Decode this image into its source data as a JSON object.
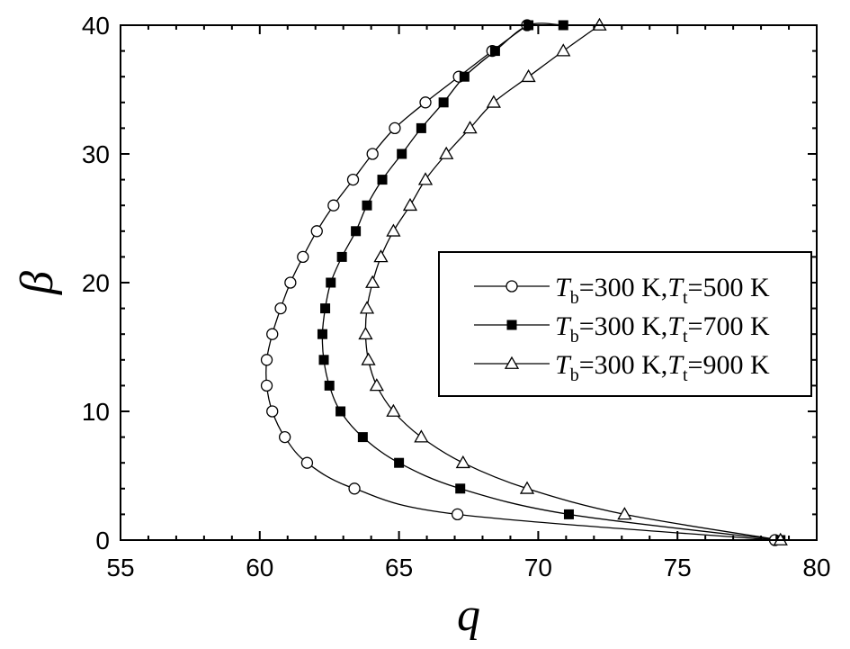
{
  "chart_data": {
    "type": "line",
    "xlabel": "q",
    "ylabel": "β",
    "xlim": [
      55,
      80
    ],
    "ylim": [
      0,
      40
    ],
    "x_ticks": [
      "55",
      "60",
      "65",
      "70",
      "75",
      "80"
    ],
    "y_ticks": [
      "0",
      "10",
      "20",
      "30",
      "40"
    ],
    "grid": false,
    "legend_position": "right",
    "series": [
      {
        "name": "Tb=300 K,Tt=500 K",
        "legend": {
          "t1": "T",
          "s1": "b",
          "m1": "=300 K,",
          "t2": "T",
          "s2": "t",
          "m2": "=500 K"
        },
        "marker": "open-circle",
        "points": [
          [
            78.5,
            0
          ],
          [
            67.1,
            2
          ],
          [
            63.4,
            4
          ],
          [
            61.7,
            6
          ],
          [
            60.9,
            8
          ],
          [
            60.45,
            10
          ],
          [
            60.25,
            12
          ],
          [
            60.25,
            14
          ],
          [
            60.45,
            16
          ],
          [
            60.75,
            18
          ],
          [
            61.1,
            20
          ],
          [
            61.55,
            22
          ],
          [
            62.05,
            24
          ],
          [
            62.65,
            26
          ],
          [
            63.35,
            28
          ],
          [
            64.05,
            30
          ],
          [
            64.85,
            32
          ],
          [
            65.95,
            34
          ],
          [
            67.15,
            36
          ],
          [
            68.35,
            38
          ],
          [
            69.6,
            40
          ]
        ]
      },
      {
        "name": "Tb=300 K,Tt=700 K",
        "legend": {
          "t1": "T",
          "s1": "b",
          "m1": "=300 K,",
          "t2": "T",
          "s2": "t",
          "m2": "=700 K"
        },
        "marker": "filled-square",
        "points": [
          [
            78.7,
            0
          ],
          [
            71.1,
            2
          ],
          [
            67.2,
            4
          ],
          [
            65.0,
            6
          ],
          [
            63.7,
            8
          ],
          [
            62.9,
            10
          ],
          [
            62.5,
            12
          ],
          [
            62.3,
            14
          ],
          [
            62.25,
            16
          ],
          [
            62.35,
            18
          ],
          [
            62.55,
            20
          ],
          [
            62.95,
            22
          ],
          [
            63.45,
            24
          ],
          [
            63.85,
            26
          ],
          [
            64.4,
            28
          ],
          [
            65.1,
            30
          ],
          [
            65.8,
            32
          ],
          [
            66.6,
            34
          ],
          [
            67.35,
            36
          ],
          [
            68.45,
            38
          ],
          [
            69.65,
            40
          ],
          [
            70.9,
            40
          ]
        ]
      },
      {
        "name": "Tb=300 K,Tt=900 K",
        "legend": {
          "t1": "T",
          "s1": "b",
          "m1": "=300 K,",
          "t2": "T",
          "s2": "t",
          "m2": "=900 K"
        },
        "marker": "open-triangle",
        "points": [
          [
            78.7,
            0
          ],
          [
            73.1,
            2
          ],
          [
            69.6,
            4
          ],
          [
            67.3,
            6
          ],
          [
            65.8,
            8
          ],
          [
            64.8,
            10
          ],
          [
            64.2,
            12
          ],
          [
            63.9,
            14
          ],
          [
            63.8,
            16
          ],
          [
            63.85,
            18
          ],
          [
            64.05,
            20
          ],
          [
            64.35,
            22
          ],
          [
            64.8,
            24
          ],
          [
            65.4,
            26
          ],
          [
            65.95,
            28
          ],
          [
            66.7,
            30
          ],
          [
            67.55,
            32
          ],
          [
            68.4,
            34
          ],
          [
            69.65,
            36
          ],
          [
            70.9,
            38
          ],
          [
            72.2,
            40
          ]
        ]
      }
    ]
  }
}
